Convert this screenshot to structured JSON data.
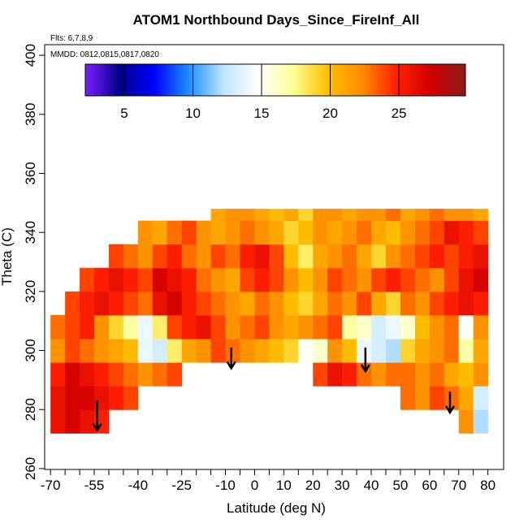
{
  "chart_data": {
    "type": "heatmap",
    "title": "ATOM1 Northbound Days_Since_FireInf_All",
    "flights": "Flts: 6,7,8,9",
    "dates": "MMDD: 0812,0815,0817,0820",
    "xlabel": "Latitude (deg N)",
    "ylabel": "Theta (C)",
    "xlim": [
      -72,
      85.4
    ],
    "ylim": [
      259.7,
      403.6
    ],
    "xticks": [
      -70,
      -55,
      -40,
      -25,
      -10,
      0,
      10,
      20,
      30,
      40,
      50,
      60,
      70,
      80
    ],
    "xminor": [
      -65,
      -60,
      -50,
      -45,
      -35,
      -30,
      -20,
      -15,
      -5,
      5,
      15,
      25,
      35,
      45,
      55,
      65,
      75
    ],
    "yticks": [
      260,
      280,
      300,
      320,
      340,
      360,
      380,
      400
    ],
    "x_edges": [
      -70,
      -65,
      -60,
      -55,
      -50,
      -45,
      -40,
      -35,
      -30,
      -25,
      -20,
      -15,
      -10,
      -5,
      0,
      5,
      10,
      15,
      20,
      25,
      30,
      35,
      40,
      45,
      50,
      55,
      60,
      65,
      70,
      75,
      80
    ],
    "y_edges": [
      272,
      280,
      288,
      296,
      304,
      312,
      320,
      328,
      336,
      344,
      348
    ],
    "z": [
      [
        26,
        27,
        26,
        25,
        null,
        null,
        null,
        null,
        null,
        null,
        null,
        null,
        null,
        null,
        null,
        null,
        null,
        null,
        null,
        null,
        null,
        null,
        null,
        null,
        null,
        null,
        null,
        null,
        22,
        12
      ],
      [
        26,
        27,
        27,
        26,
        25,
        24,
        null,
        null,
        null,
        null,
        null,
        null,
        null,
        null,
        null,
        null,
        null,
        null,
        null,
        null,
        null,
        null,
        null,
        null,
        23,
        22,
        24,
        23,
        21,
        13
      ],
      [
        25,
        27,
        26,
        25,
        24,
        23,
        22,
        23,
        24,
        null,
        null,
        null,
        null,
        null,
        null,
        null,
        null,
        null,
        24,
        26,
        25,
        23,
        22,
        23,
        23,
        22,
        23,
        21,
        20,
        22
      ],
      [
        22,
        24,
        23,
        22,
        21,
        20,
        14,
        13,
        18,
        21,
        22,
        24,
        23,
        22,
        21,
        20,
        19,
        15,
        16,
        22,
        20,
        14,
        13,
        12,
        19,
        21,
        22,
        23,
        17,
        21
      ],
      [
        23,
        24,
        25,
        22,
        19,
        17,
        14,
        18,
        24,
        25,
        26,
        24,
        22,
        23,
        24,
        22,
        21,
        22,
        23,
        24,
        17,
        16,
        13,
        14,
        16,
        20,
        22,
        23,
        15,
        22
      ],
      [
        null,
        24,
        25,
        26,
        25,
        24,
        23,
        26,
        27,
        25,
        24,
        23,
        22,
        21,
        23,
        22,
        20,
        19,
        21,
        23,
        22,
        24,
        21,
        19,
        23,
        22,
        24,
        25,
        26,
        25
      ],
      [
        null,
        null,
        24,
        25,
        26,
        25,
        24,
        27,
        26,
        25,
        23,
        22,
        21,
        24,
        25,
        24,
        22,
        20,
        22,
        24,
        23,
        22,
        24,
        25,
        24,
        23,
        22,
        24,
        26,
        27
      ],
      [
        null,
        null,
        null,
        null,
        24,
        23,
        22,
        24,
        25,
        23,
        22,
        24,
        23,
        25,
        26,
        24,
        20,
        18,
        21,
        22,
        23,
        21,
        19,
        22,
        23,
        24,
        25,
        24,
        25,
        26
      ],
      [
        null,
        null,
        null,
        null,
        null,
        null,
        22,
        21,
        23,
        24,
        22,
        21,
        22,
        23,
        22,
        21,
        19,
        20,
        22,
        21,
        22,
        23,
        21,
        20,
        22,
        23,
        24,
        26,
        25,
        24
      ],
      [
        null,
        null,
        null,
        null,
        null,
        null,
        null,
        null,
        null,
        null,
        null,
        21,
        22,
        22,
        21,
        20,
        21,
        19,
        22,
        22,
        21,
        22,
        22,
        23,
        21,
        22,
        23,
        22,
        22,
        21
      ]
    ],
    "colorbar": {
      "lim": [
        2.16,
        29.85
      ],
      "ticks": [
        5,
        10,
        15,
        20,
        25
      ],
      "colors": [
        "#7b1fff",
        "#00008b",
        "#0000ff",
        "#1e90ff",
        "#bfe6ff",
        "#ffffff",
        "#ffff99",
        "#ffc000",
        "#ff8c00",
        "#ff2000",
        "#d00000",
        "#8b1a1a"
      ]
    },
    "arrows": [
      {
        "x": -54,
        "y": [
          283,
          273
        ]
      },
      {
        "x": -8,
        "y": [
          301,
          294
        ]
      },
      {
        "x": 38,
        "y": [
          301,
          293
        ]
      },
      {
        "x": 67,
        "y": [
          286,
          279
        ]
      }
    ]
  }
}
